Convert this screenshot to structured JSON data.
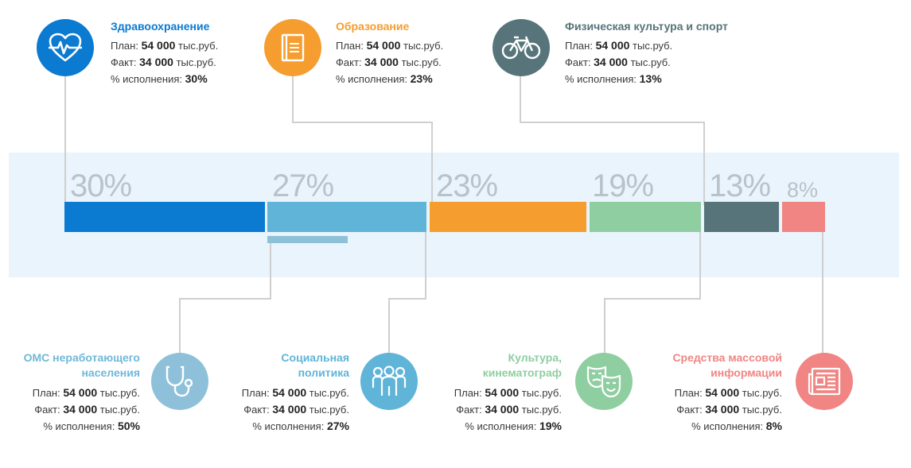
{
  "colors": {
    "health": "#0b7ad1",
    "oms": "#5fb4d8",
    "education": "#f59d2e",
    "culture": "#8fcea0",
    "sport": "#567479",
    "media": "#f08583",
    "band": "#e9f4fc",
    "connector": "#cfcfcf"
  },
  "labels": {
    "plan": "План:",
    "fact": "Факт:",
    "execution": "% исполнения:",
    "unit": "тыс.руб."
  },
  "chart_data": {
    "type": "bar",
    "orientation": "stacked-horizontal",
    "segments": [
      {
        "label": "30%",
        "value": 30
      },
      {
        "label": "27%",
        "value": 27
      },
      {
        "label": "23%",
        "value": 23
      },
      {
        "label": "19%",
        "value": 19
      },
      {
        "label": "13%",
        "value": 13
      },
      {
        "label": "8%",
        "value": 8
      }
    ]
  },
  "categories": {
    "health": {
      "title": "Здравоохранение",
      "icon": "heart-pulse-icon",
      "plan": "54 000",
      "fact": "34 000",
      "execution": "30%"
    },
    "education": {
      "title": "Образование",
      "icon": "book-icon",
      "plan": "54 000",
      "fact": "34 000",
      "execution": "23%"
    },
    "sport": {
      "title": "Физическая культура и спорт",
      "icon": "bicycle-icon",
      "plan": "54 000",
      "fact": "34 000",
      "execution": "13%"
    },
    "oms": {
      "title_line1": "ОМС неработающего",
      "title_line2": "населения",
      "icon": "stethoscope-icon",
      "plan": "54 000",
      "fact": "34 000",
      "execution": "50%"
    },
    "social": {
      "title_line1": "Социальная",
      "title_line2": "политика",
      "icon": "people-group-icon",
      "plan": "54 000",
      "fact": "34 000",
      "execution": "27%"
    },
    "culture": {
      "title_line1": "Культура,",
      "title_line2": "кинематограф",
      "icon": "theater-masks-icon",
      "plan": "54 000",
      "fact": "34 000",
      "execution": "19%"
    },
    "media": {
      "title_line1": "Средства массовой",
      "title_line2": "информации",
      "icon": "newspaper-icon",
      "plan": "54 000",
      "fact": "34 000",
      "execution": "8%"
    }
  }
}
